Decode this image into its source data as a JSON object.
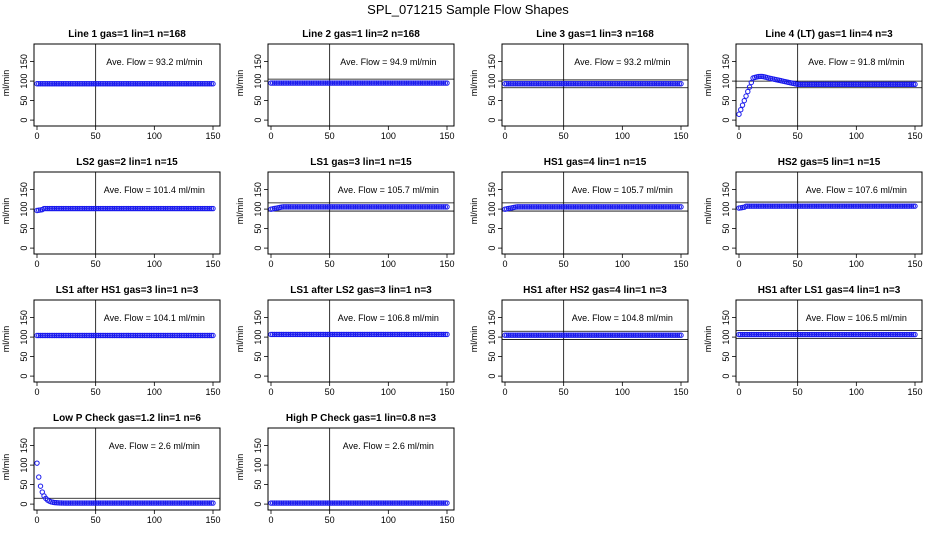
{
  "title": "SPL_071215  Sample Flow Shapes",
  "chart_data": [
    {
      "type": "scatter",
      "title": "Line 1 gas=1 lin=1 n=168",
      "ylabel": "ml/min",
      "annotation": "Ave. Flow = 93.2  ml/min",
      "ave_flow": 93.2,
      "shape": "flat",
      "xlim": [
        0,
        150
      ],
      "ylim": [
        -10,
        190
      ],
      "x_ticks": [
        0,
        50,
        100,
        150
      ],
      "y_ticks": [
        0,
        50,
        100,
        150
      ],
      "band": []
    },
    {
      "type": "scatter",
      "title": "Line 2 gas=1 lin=2 n=168",
      "ylabel": "ml/min",
      "annotation": "Ave. Flow = 94.9  ml/min",
      "ave_flow": 94.9,
      "shape": "flat",
      "xlim": [
        0,
        150
      ],
      "ylim": [
        -10,
        190
      ],
      "x_ticks": [
        0,
        50,
        100,
        150
      ],
      "y_ticks": [
        0,
        50,
        100,
        150
      ],
      "band": [
        105
      ]
    },
    {
      "type": "scatter",
      "title": "Line 3 gas=1 lin=3 n=168",
      "ylabel": "ml/min",
      "annotation": "Ave. Flow = 93.2  ml/min",
      "ave_flow": 93.2,
      "shape": "flat",
      "xlim": [
        0,
        150
      ],
      "ylim": [
        -10,
        190
      ],
      "x_ticks": [
        0,
        50,
        100,
        150
      ],
      "y_ticks": [
        0,
        50,
        100,
        150
      ],
      "band": [
        103,
        83
      ]
    },
    {
      "type": "scatter",
      "title": "Line 4 (LT) gas=1 lin=4 n=3",
      "ylabel": "ml/min",
      "annotation": "Ave. Flow = 91.8  ml/min",
      "ave_flow": 91.8,
      "shape": "hump",
      "xlim": [
        0,
        150
      ],
      "ylim": [
        -10,
        190
      ],
      "x_ticks": [
        0,
        50,
        100,
        150
      ],
      "y_ticks": [
        0,
        50,
        100,
        150
      ],
      "band": [
        100,
        83
      ]
    },
    {
      "type": "scatter",
      "title": "LS2 gas=2 lin=1 n=15",
      "ylabel": "ml/min",
      "annotation": "Ave. Flow = 101.4  ml/min",
      "ave_flow": 101.4,
      "shape": "early_dip",
      "xlim": [
        0,
        150
      ],
      "ylim": [
        -10,
        190
      ],
      "x_ticks": [
        0,
        50,
        100,
        150
      ],
      "y_ticks": [
        0,
        50,
        100,
        150
      ],
      "band": []
    },
    {
      "type": "scatter",
      "title": "LS1 gas=3 lin=1 n=15",
      "ylabel": "ml/min",
      "annotation": "Ave. Flow = 105.7  ml/min",
      "ave_flow": 105.7,
      "shape": "rise",
      "xlim": [
        0,
        150
      ],
      "ylim": [
        -10,
        190
      ],
      "x_ticks": [
        0,
        50,
        100,
        150
      ],
      "y_ticks": [
        0,
        50,
        100,
        150
      ],
      "band": [
        116,
        95
      ]
    },
    {
      "type": "scatter",
      "title": "HS1 gas=4 lin=1 n=15",
      "ylabel": "ml/min",
      "annotation": "Ave. Flow = 105.7  ml/min",
      "ave_flow": 105.7,
      "shape": "rise",
      "xlim": [
        0,
        150
      ],
      "ylim": [
        -10,
        190
      ],
      "x_ticks": [
        0,
        50,
        100,
        150
      ],
      "y_ticks": [
        0,
        50,
        100,
        150
      ],
      "band": [
        116,
        95
      ]
    },
    {
      "type": "scatter",
      "title": "HS2 gas=5 lin=1 n=15",
      "ylabel": "ml/min",
      "annotation": "Ave. Flow = 107.6  ml/min",
      "ave_flow": 107.6,
      "shape": "early_dip",
      "xlim": [
        0,
        150
      ],
      "ylim": [
        -10,
        190
      ],
      "x_ticks": [
        0,
        50,
        100,
        150
      ],
      "y_ticks": [
        0,
        50,
        100,
        150
      ],
      "band": [
        118
      ]
    },
    {
      "type": "scatter",
      "title": "LS1 after HS1 gas=3 lin=1 n=3",
      "ylabel": "ml/min",
      "annotation": "Ave. Flow = 104.1  ml/min",
      "ave_flow": 104.1,
      "shape": "flat",
      "xlim": [
        0,
        150
      ],
      "ylim": [
        -10,
        190
      ],
      "x_ticks": [
        0,
        50,
        100,
        150
      ],
      "y_ticks": [
        0,
        50,
        100,
        150
      ],
      "band": []
    },
    {
      "type": "scatter",
      "title": "LS1 after LS2 gas=3 lin=1 n=3",
      "ylabel": "ml/min",
      "annotation": "Ave. Flow = 106.8  ml/min",
      "ave_flow": 106.8,
      "shape": "flat",
      "xlim": [
        0,
        150
      ],
      "ylim": [
        -10,
        190
      ],
      "x_ticks": [
        0,
        50,
        100,
        150
      ],
      "y_ticks": [
        0,
        50,
        100,
        150
      ],
      "band": []
    },
    {
      "type": "scatter",
      "title": "HS1 after HS2 gas=4 lin=1 n=3",
      "ylabel": "ml/min",
      "annotation": "Ave. Flow = 104.8  ml/min",
      "ave_flow": 104.8,
      "shape": "flat",
      "xlim": [
        0,
        150
      ],
      "ylim": [
        -10,
        190
      ],
      "x_ticks": [
        0,
        50,
        100,
        150
      ],
      "y_ticks": [
        0,
        50,
        100,
        150
      ],
      "band": [
        115,
        94
      ]
    },
    {
      "type": "scatter",
      "title": "HS1 after LS1 gas=4 lin=1 n=3",
      "ylabel": "ml/min",
      "annotation": "Ave. Flow = 106.5  ml/min",
      "ave_flow": 106.5,
      "shape": "flat",
      "xlim": [
        0,
        150
      ],
      "ylim": [
        -10,
        190
      ],
      "x_ticks": [
        0,
        50,
        100,
        150
      ],
      "y_ticks": [
        0,
        50,
        100,
        150
      ],
      "band": [
        117,
        96
      ]
    },
    {
      "type": "scatter",
      "title": "Low P Check gas=1.2 lin=1 n=6",
      "ylabel": "ml/min",
      "annotation": "Ave. Flow = 2.6  ml/min",
      "ave_flow": 2.6,
      "shape": "decay",
      "start_flow": 105,
      "xlim": [
        0,
        150
      ],
      "ylim": [
        -10,
        190
      ],
      "x_ticks": [
        0,
        50,
        100,
        150
      ],
      "y_ticks": [
        0,
        50,
        100,
        150
      ],
      "band": [
        15
      ]
    },
    {
      "type": "scatter",
      "title": "High P Check gas=1 lin=0.8 n=3",
      "ylabel": "ml/min",
      "annotation": "Ave. Flow = 2.6  ml/min",
      "ave_flow": 2.6,
      "shape": "flat",
      "xlim": [
        0,
        150
      ],
      "ylim": [
        -10,
        190
      ],
      "x_ticks": [
        0,
        50,
        100,
        150
      ],
      "y_ticks": [
        0,
        50,
        100,
        150
      ],
      "band": []
    }
  ]
}
